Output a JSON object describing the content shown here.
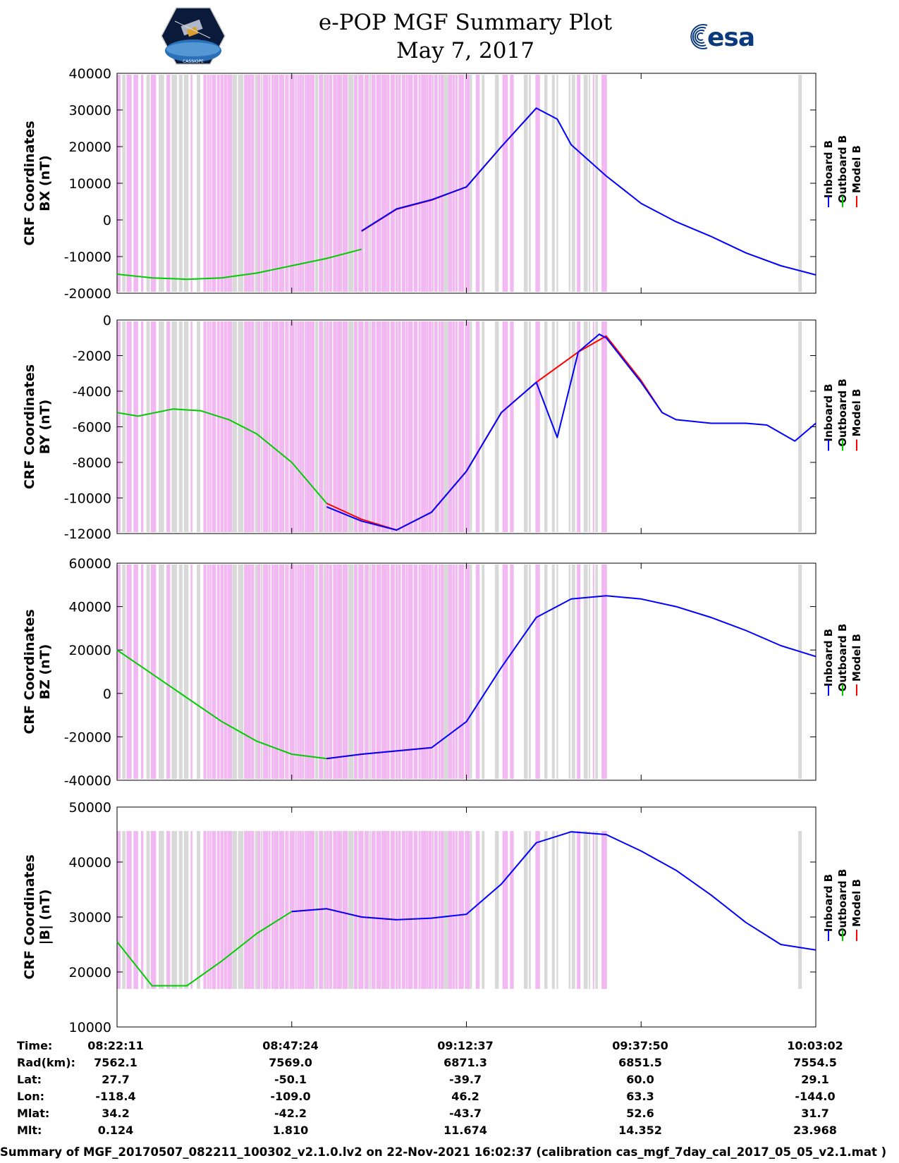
{
  "header": {
    "title_line1": "e-POP MGF Summary Plot",
    "title_line2": "May 7, 2017",
    "logo_left_text": "CASSIOPE",
    "logo_right_text": "esa"
  },
  "colors": {
    "inboard": "#0000ff",
    "outboard": "#00cc00",
    "model": "#ff0000",
    "shade_gray": "#d9d9d9",
    "shade_pink": "#f2b8f2"
  },
  "chart_data": [
    {
      "type": "line",
      "ylabel_line1": "CRF Coordinates",
      "ylabel_line2": "BX (nT)",
      "ylim": [
        -20000,
        40000
      ],
      "yticks": [
        -20000,
        -10000,
        0,
        10000,
        20000,
        30000,
        40000
      ],
      "legend": [
        "Inboard B",
        "Outboard B",
        "Model B"
      ],
      "legend_placement": "right",
      "x_time_labels": [
        "08:22:11",
        "08:47:24",
        "09:12:37",
        "09:37:50",
        "10:03:02"
      ],
      "series": [
        {
          "name": "Outboard B",
          "color": "outboard",
          "x": [
            0,
            0.05,
            0.1,
            0.15,
            0.2,
            0.25,
            0.3,
            0.35
          ],
          "y": [
            -14800,
            -15800,
            -16200,
            -15800,
            -14500,
            -12500,
            -10500,
            -8000
          ]
        },
        {
          "name": "Inboard B",
          "color": "inboard",
          "x": [
            0.35,
            0.4,
            0.45,
            0.5,
            0.55,
            0.6,
            0.63,
            0.65,
            0.7,
            0.75,
            0.8,
            0.85,
            0.9,
            0.95,
            1.0
          ],
          "y": [
            -3000,
            3000,
            5500,
            9000,
            20000,
            30500,
            27500,
            20500,
            12000,
            4500,
            -500,
            -4500,
            -9000,
            -12500,
            -15000
          ]
        },
        {
          "name": "Model B",
          "color": "model",
          "x": [
            0.35,
            0.4,
            0.45,
            0.5,
            0.55,
            0.6
          ],
          "y": [
            -3100,
            2900,
            5400,
            9000,
            20000,
            30500
          ]
        }
      ]
    },
    {
      "type": "line",
      "ylabel_line1": "CRF Coordinates",
      "ylabel_line2": "BY (nT)",
      "ylim": [
        -12000,
        0
      ],
      "yticks": [
        -12000,
        -10000,
        -8000,
        -6000,
        -4000,
        -2000,
        0
      ],
      "legend": [
        "Inboard B",
        "Outboard B",
        "Model B"
      ],
      "legend_placement": "right",
      "series": [
        {
          "name": "Outboard B",
          "color": "outboard",
          "x": [
            0,
            0.03,
            0.08,
            0.12,
            0.16,
            0.2,
            0.25,
            0.3
          ],
          "y": [
            -5200,
            -5400,
            -5000,
            -5100,
            -5600,
            -6400,
            -8000,
            -10300
          ]
        },
        {
          "name": "Inboard B",
          "color": "inboard",
          "x": [
            0.3,
            0.35,
            0.4,
            0.45,
            0.5,
            0.55,
            0.6,
            0.63,
            0.66,
            0.69,
            0.7,
            0.75,
            0.78,
            0.8,
            0.85,
            0.9,
            0.93,
            0.97,
            1.0
          ],
          "y": [
            -10500,
            -11300,
            -11800,
            -10800,
            -8500,
            -5200,
            -3500,
            -6600,
            -1800,
            -800,
            -1000,
            -3500,
            -5200,
            -5600,
            -5800,
            -5800,
            -5900,
            -6800,
            -5800
          ]
        },
        {
          "name": "Model B",
          "color": "model",
          "x": [
            0.3,
            0.35,
            0.4,
            0.45,
            0.5,
            0.55,
            0.6,
            0.66,
            0.7,
            0.75,
            0.78
          ],
          "y": [
            -10300,
            -11200,
            -11800,
            -10800,
            -8500,
            -5200,
            -3500,
            -1800,
            -900,
            -3400,
            -5200
          ]
        }
      ]
    },
    {
      "type": "line",
      "ylabel_line1": "CRF Coordinates",
      "ylabel_line2": "BZ (nT)",
      "ylim": [
        -40000,
        60000
      ],
      "yticks": [
        -40000,
        -20000,
        0,
        20000,
        40000,
        60000
      ],
      "legend": [
        "Inboard B",
        "Outboard B",
        "Model B"
      ],
      "legend_placement": "right",
      "series": [
        {
          "name": "Outboard B",
          "color": "outboard",
          "x": [
            0,
            0.05,
            0.1,
            0.15,
            0.2,
            0.25,
            0.3
          ],
          "y": [
            20000,
            9000,
            -2000,
            -13000,
            -22000,
            -28000,
            -30000
          ]
        },
        {
          "name": "Inboard B",
          "color": "inboard",
          "x": [
            0.3,
            0.35,
            0.4,
            0.45,
            0.5,
            0.55,
            0.6,
            0.65,
            0.7,
            0.75,
            0.8,
            0.85,
            0.9,
            0.95,
            1.0
          ],
          "y": [
            -30000,
            -28000,
            -26500,
            -25000,
            -13000,
            12000,
            35000,
            43500,
            45000,
            43500,
            40000,
            35000,
            29000,
            22000,
            17000
          ]
        },
        {
          "name": "Model B",
          "color": "model",
          "x": [
            0.3,
            0.35,
            0.4,
            0.45
          ],
          "y": [
            -30000,
            -28000,
            -26500,
            -25000
          ]
        }
      ]
    },
    {
      "type": "line",
      "ylabel_line1": "CRF Coordinates",
      "ylabel_line2": "|B| (nT)",
      "ylim": [
        10000,
        50000
      ],
      "yticks": [
        10000,
        20000,
        30000,
        40000,
        50000
      ],
      "legend": [
        "Inboard B",
        "Outboard B",
        "Model B"
      ],
      "legend_placement": "right",
      "series": [
        {
          "name": "Outboard B",
          "color": "outboard",
          "x": [
            0,
            0.05,
            0.1,
            0.15,
            0.2,
            0.25
          ],
          "y": [
            25500,
            17500,
            17500,
            22000,
            27000,
            31000
          ]
        },
        {
          "name": "Inboard B",
          "color": "inboard",
          "x": [
            0.25,
            0.3,
            0.35,
            0.4,
            0.45,
            0.5,
            0.55,
            0.6,
            0.65,
            0.7,
            0.75,
            0.8,
            0.85,
            0.9,
            0.95,
            1.0
          ],
          "y": [
            31000,
            31500,
            30000,
            29500,
            29800,
            30500,
            36000,
            43500,
            45500,
            45000,
            42000,
            38500,
            34000,
            29000,
            25000,
            24000
          ]
        },
        {
          "name": "Model B",
          "color": "model",
          "x": [
            0.25,
            0.3,
            0.35,
            0.4
          ],
          "y": [
            31000,
            31500,
            30000,
            29500
          ]
        }
      ]
    }
  ],
  "table": {
    "row_labels": [
      "Time:",
      "Rad(km):",
      "Lat:",
      "Lon:",
      "Mlat:",
      "Mlt:"
    ],
    "columns": [
      [
        "08:22:11",
        "7562.1",
        "27.7",
        "-118.4",
        "34.2",
        "0.124"
      ],
      [
        "08:47:24",
        "7569.0",
        "-50.1",
        "-109.0",
        "-42.2",
        "1.810"
      ],
      [
        "09:12:37",
        "6871.3",
        "-39.7",
        "46.2",
        "-43.7",
        "11.674"
      ],
      [
        "09:37:50",
        "6851.5",
        "60.0",
        "63.3",
        "52.6",
        "14.352"
      ],
      [
        "10:03:02",
        "7554.5",
        "29.1",
        "-144.0",
        "31.7",
        "23.968"
      ]
    ]
  },
  "footer": "Summary of MGF_20170507_082211_100302_v2.1.0.lv2 on 22-Nov-2021 16:02:37 (calibration cas_mgf_7day_cal_2017_05_05_v2.1.mat )"
}
